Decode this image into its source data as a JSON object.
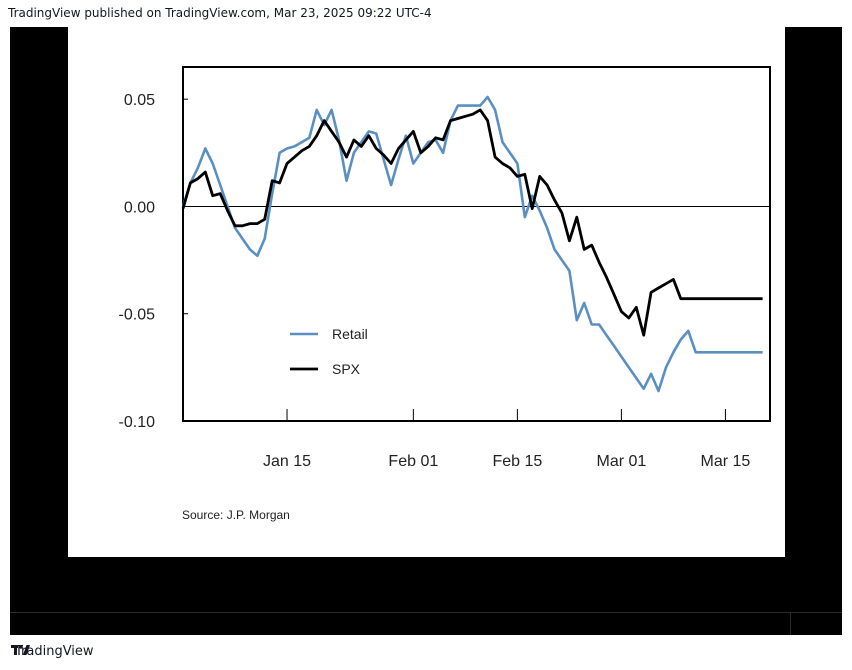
{
  "header": {
    "text": "TradingView published on TradingView.com, Mar 23, 2025 09:22 UTC-4"
  },
  "footer": {
    "brand": "TradingView"
  },
  "colors": {
    "retail": "#5b8fc2",
    "spx": "#000000",
    "frame": "#000000"
  },
  "chart_data": {
    "type": "line",
    "title": "",
    "xlabel": "",
    "ylabel": "",
    "source": "Source: J.P. Morgan",
    "ylim": [
      -0.1,
      0.065
    ],
    "yticks": [
      0.05,
      0.0,
      -0.05,
      -0.1
    ],
    "ytick_labels": [
      "0.05",
      "0.00",
      "-0.05",
      "-0.10"
    ],
    "xticks": [
      "Jan 15",
      "Feb 01",
      "Feb 15",
      "Mar 01",
      "Mar 15"
    ],
    "xtick_index": [
      14,
      31,
      45,
      59,
      73
    ],
    "xlim_index": [
      0,
      79
    ],
    "zero_line": true,
    "legend_position": "lower-left",
    "series": [
      {
        "name": "Retail",
        "x": [
          0,
          1,
          2,
          3,
          4,
          5,
          6,
          7,
          8,
          9,
          10,
          11,
          12,
          13,
          14,
          15,
          16,
          17,
          18,
          19,
          20,
          21,
          22,
          23,
          24,
          25,
          26,
          27,
          28,
          29,
          30,
          31,
          32,
          33,
          34,
          35,
          36,
          37,
          38,
          39,
          40,
          41,
          42,
          43,
          44,
          45,
          46,
          47,
          48,
          49,
          50,
          51,
          52,
          53,
          54,
          55,
          56,
          57,
          58,
          59,
          60,
          61,
          62,
          63,
          64,
          65,
          66,
          67,
          68,
          69,
          70,
          71,
          72,
          73,
          74,
          75,
          76,
          77,
          78
        ],
        "values": [
          0.0,
          0.011,
          0.018,
          0.027,
          0.02,
          0.01,
          0.0,
          -0.01,
          -0.015,
          -0.02,
          -0.023,
          -0.015,
          0.006,
          0.025,
          0.027,
          0.028,
          0.03,
          0.032,
          0.045,
          0.038,
          0.045,
          0.031,
          0.012,
          0.025,
          0.03,
          0.035,
          0.034,
          0.022,
          0.01,
          0.022,
          0.033,
          0.02,
          0.025,
          0.03,
          0.031,
          0.025,
          0.04,
          0.047,
          0.047,
          0.047,
          0.047,
          0.051,
          0.045,
          0.03,
          0.025,
          0.02,
          -0.005,
          0.005,
          -0.002,
          -0.01,
          -0.02,
          -0.025,
          -0.03,
          -0.053,
          -0.045,
          -0.055,
          -0.055,
          -0.06,
          -0.065,
          -0.07,
          -0.075,
          -0.08,
          -0.085,
          -0.078,
          -0.086,
          -0.075,
          -0.068,
          -0.062,
          -0.058,
          -0.068,
          -0.068,
          -0.068,
          -0.068,
          -0.068,
          -0.068,
          -0.068,
          -0.068,
          -0.068,
          -0.068
        ]
      },
      {
        "name": "SPX",
        "x": [
          0,
          1,
          2,
          3,
          4,
          5,
          6,
          7,
          8,
          9,
          10,
          11,
          12,
          13,
          14,
          15,
          16,
          17,
          18,
          19,
          20,
          21,
          22,
          23,
          24,
          25,
          26,
          27,
          28,
          29,
          30,
          31,
          32,
          33,
          34,
          35,
          36,
          37,
          38,
          39,
          40,
          41,
          42,
          43,
          44,
          45,
          46,
          47,
          48,
          49,
          50,
          51,
          52,
          53,
          54,
          55,
          56,
          57,
          58,
          59,
          60,
          61,
          62,
          63,
          64,
          65,
          66,
          67,
          68,
          69,
          70,
          71,
          72,
          73,
          74,
          75,
          76,
          77,
          78
        ],
        "values": [
          -0.001,
          0.011,
          0.013,
          0.016,
          0.005,
          0.006,
          -0.002,
          -0.009,
          -0.009,
          -0.008,
          -0.008,
          -0.006,
          0.012,
          0.011,
          0.02,
          0.023,
          0.026,
          0.028,
          0.033,
          0.04,
          0.035,
          0.03,
          0.023,
          0.031,
          0.028,
          0.033,
          0.027,
          0.024,
          0.02,
          0.027,
          0.031,
          0.035,
          0.025,
          0.028,
          0.032,
          0.031,
          0.04,
          0.041,
          0.042,
          0.043,
          0.045,
          0.04,
          0.023,
          0.02,
          0.018,
          0.014,
          0.015,
          -0.001,
          0.014,
          0.01,
          0.003,
          -0.003,
          -0.016,
          -0.005,
          -0.02,
          -0.018,
          -0.026,
          -0.033,
          -0.041,
          -0.049,
          -0.052,
          -0.047,
          -0.06,
          -0.04,
          -0.038,
          -0.036,
          -0.034,
          -0.043,
          -0.043,
          -0.043,
          -0.043,
          -0.043,
          -0.043,
          -0.043,
          -0.043,
          -0.043,
          -0.043,
          -0.043,
          -0.043
        ]
      }
    ]
  }
}
